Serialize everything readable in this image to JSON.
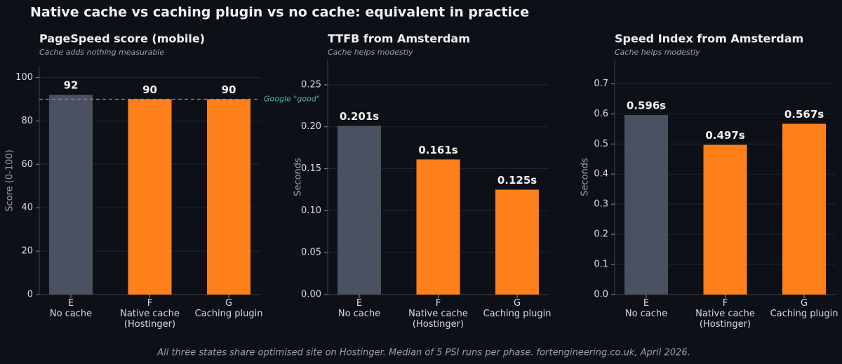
{
  "title": "Native cache vs caching plugin vs no cache: equivalent in practice",
  "footnote": "All three states share optimised site on Hostinger. Median of 5 PSI runs per phase. fortengineering.co.uk, April 2026.",
  "chart_data": [
    {
      "type": "bar",
      "title": "PageSpeed score (mobile)",
      "subtitle": "Cache adds nothing measurable",
      "y_label": "Score (0-100)",
      "categories": [
        "E\nNo cache",
        "F\nNative cache\n(Hostinger)",
        "G\nCaching plugin"
      ],
      "values": [
        92,
        90,
        90
      ],
      "colors": [
        "#4a5261",
        "#ff7f1a",
        "#ff7f1a"
      ],
      "ylim": [
        0,
        105
      ],
      "yticks": [
        0,
        20,
        40,
        60,
        80,
        100
      ],
      "grid": true,
      "reference_line": {
        "value": 90,
        "label": "Google \"good\"",
        "color": "#4fb8a8"
      }
    },
    {
      "type": "bar",
      "title": "TTFB from Amsterdam",
      "subtitle": "Cache helps modestly",
      "y_label": "Seconds",
      "categories": [
        "E\nNo cache",
        "F\nNative cache\n(Hostinger)",
        "G\nCaching plugin"
      ],
      "values": [
        0.201,
        0.161,
        0.125
      ],
      "value_labels": [
        "0.201s",
        "0.161s",
        "0.125s"
      ],
      "colors": [
        "#4a5261",
        "#ff7f1a",
        "#ff7f1a"
      ],
      "ylim": [
        0,
        0.28
      ],
      "yticks": [
        {
          "value": 0,
          "label": "0.00"
        },
        0.05,
        {
          "value": 0.1,
          "label": "0.10"
        },
        0.15,
        {
          "value": 0.2,
          "label": "0.20"
        },
        0.25
      ],
      "grid": true
    },
    {
      "type": "bar",
      "title": "Speed Index from Amsterdam",
      "subtitle": "Cache helps modestly",
      "y_label": "Seconds",
      "categories": [
        "E\nNo cache",
        "F\nNative cache\n(Hostinger)",
        "G\nCaching plugin"
      ],
      "values": [
        0.596,
        0.497,
        0.567
      ],
      "value_labels": [
        "0.596s",
        "0.497s",
        "0.567s"
      ],
      "colors": [
        "#4a5261",
        "#ff7f1a",
        "#ff7f1a"
      ],
      "ylim": [
        0,
        0.78
      ],
      "yticks": [
        {
          "value": 0,
          "label": "0.0"
        },
        0.1,
        0.2,
        0.3,
        0.4,
        0.5,
        0.6,
        0.7
      ],
      "grid": true
    }
  ]
}
